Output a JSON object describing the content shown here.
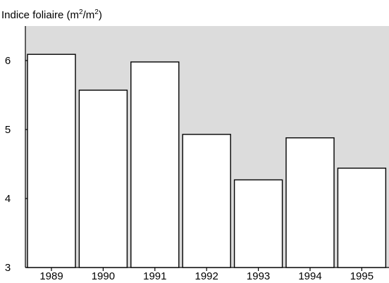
{
  "chart_data": {
    "type": "bar",
    "title": "",
    "ylabel": {
      "prefix": "Indice foliaire (m",
      "sup1": "2",
      "middle": "/m",
      "sup2": "2",
      "suffix": ")"
    },
    "xlabel": "",
    "categories": [
      "1989",
      "1990",
      "1991",
      "1992",
      "1993",
      "1994",
      "1995"
    ],
    "values": [
      6.09,
      5.57,
      5.98,
      4.93,
      4.27,
      4.88,
      4.44
    ],
    "ylim": [
      3,
      6.5
    ],
    "yticks": [
      3,
      4,
      5,
      6
    ],
    "ytick_labels": [
      "3",
      "4",
      "5",
      "6"
    ],
    "grid": false,
    "legend": "none",
    "colors": {
      "plot_background": "#dcdcdc",
      "bar_fill": "#ffffff",
      "bar_stroke": "#000000",
      "axis": "#000000"
    }
  }
}
